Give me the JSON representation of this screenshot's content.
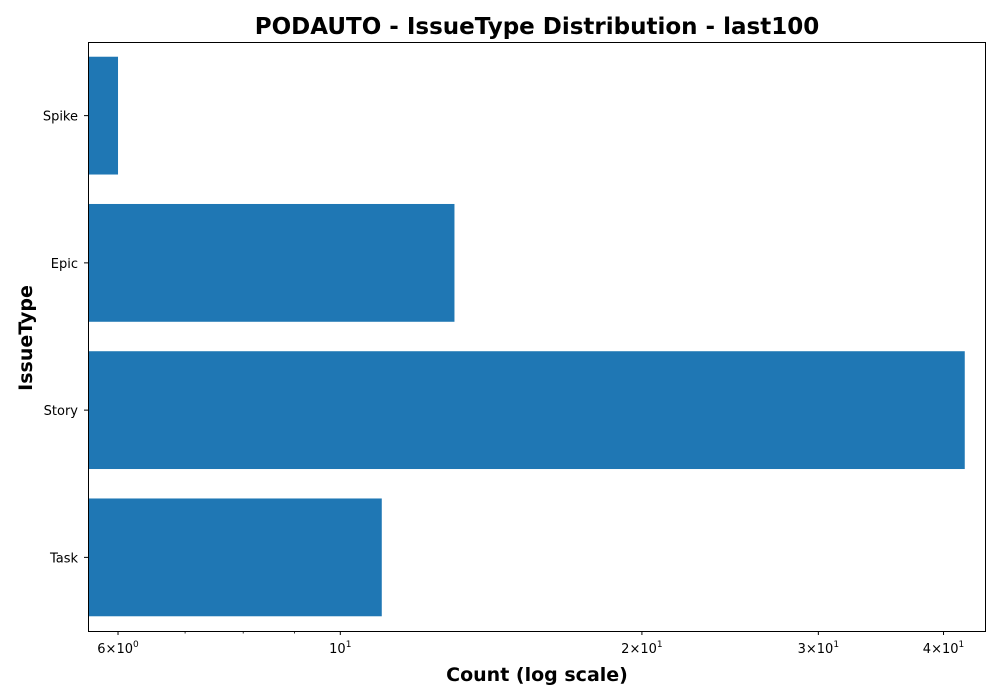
{
  "chart_data": {
    "type": "bar",
    "orientation": "horizontal",
    "title": "PODAUTO - IssueType Distribution - last100",
    "xlabel": "Count (log scale)",
    "ylabel": "IssueType",
    "x_scale": "log",
    "xlim": [
      5.6,
      44
    ],
    "categories": [
      "Task",
      "Story",
      "Epic",
      "Spike"
    ],
    "series": [
      {
        "values": [
          11,
          42,
          13,
          6
        ]
      }
    ],
    "bar_color": "#1f77b4",
    "major_ticks": [
      {
        "value": 6,
        "mantissa": "6",
        "exp": "0"
      },
      {
        "value": 10,
        "mantissa": "",
        "exp": "1"
      },
      {
        "value": 20,
        "mantissa": "2",
        "exp": "1"
      },
      {
        "value": 30,
        "mantissa": "3",
        "exp": "1"
      },
      {
        "value": 40,
        "mantissa": "4",
        "exp": "1"
      }
    ],
    "minor_ticks": [
      7,
      8,
      9
    ],
    "grid": false,
    "legend": "none"
  }
}
